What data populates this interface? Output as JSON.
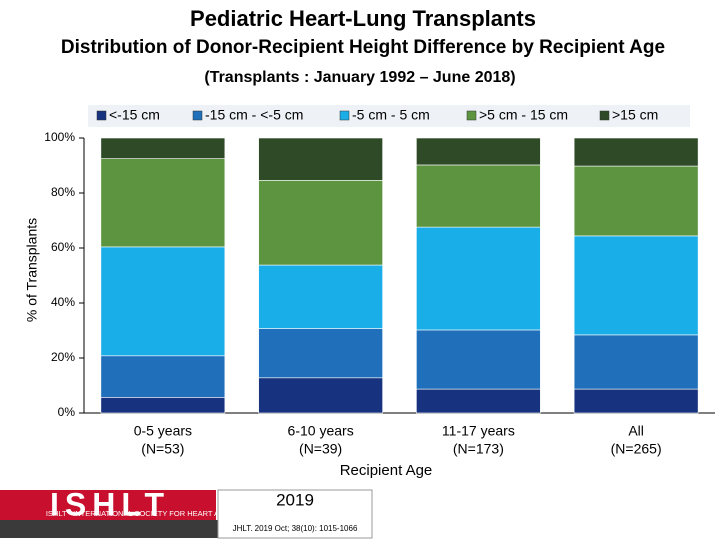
{
  "chart_data": {
    "type": "stacked_bar",
    "title": "Pediatric Heart-Lung Transplants",
    "subtitle": "Distribution of Donor-Recipient Height Difference by Recipient Age",
    "note": "(Transplants : January 1992 – June 2018)",
    "x_label": "Recipient Age",
    "y_label": "% of Transplants",
    "categories": [
      [
        "0-5 years",
        "(N=53)"
      ],
      [
        "6-10 years",
        "(N=39)"
      ],
      [
        "11-17 years",
        "(N=173)"
      ],
      [
        "All",
        "(N=265)"
      ]
    ],
    "series": [
      {
        "name": "<-15 cm",
        "color": "#17337f",
        "values": [
          5.7,
          12.8,
          8.7,
          8.7
        ]
      },
      {
        "name": "-15 cm - <-5 cm",
        "color": "#1f6fba",
        "values": [
          15.1,
          17.9,
          21.5,
          19.7
        ]
      },
      {
        "name": "-5 cm - 5 cm",
        "color": "#19aee8",
        "values": [
          39.6,
          23.1,
          37.4,
          36.0
        ]
      },
      {
        "name": ">5 cm - 15 cm",
        "color": "#5c9440",
        "values": [
          32.1,
          30.8,
          22.6,
          25.4
        ]
      },
      {
        "name": ">15 cm",
        "color": "#2e4a26",
        "values": [
          7.5,
          15.4,
          9.8,
          10.2
        ]
      }
    ],
    "ylim": [
      0,
      100
    ],
    "yticks": [
      {
        "value": 0,
        "label": "0%"
      },
      {
        "value": 20,
        "label": "20%"
      },
      {
        "value": 40,
        "label": "40%"
      },
      {
        "value": 60,
        "label": "60%"
      },
      {
        "value": 80,
        "label": "80%"
      },
      {
        "value": 100,
        "label": "100%"
      }
    ],
    "legend": "top"
  },
  "footer": {
    "logo": "ISHLT",
    "society": "ISHLT • INTERNATIONAL SOCIETY FOR HEART AND LUNG TRANSPLANTATION",
    "year": "2019",
    "citation": "JHLT. 2019 Oct; 38(10): 1015-1066"
  }
}
